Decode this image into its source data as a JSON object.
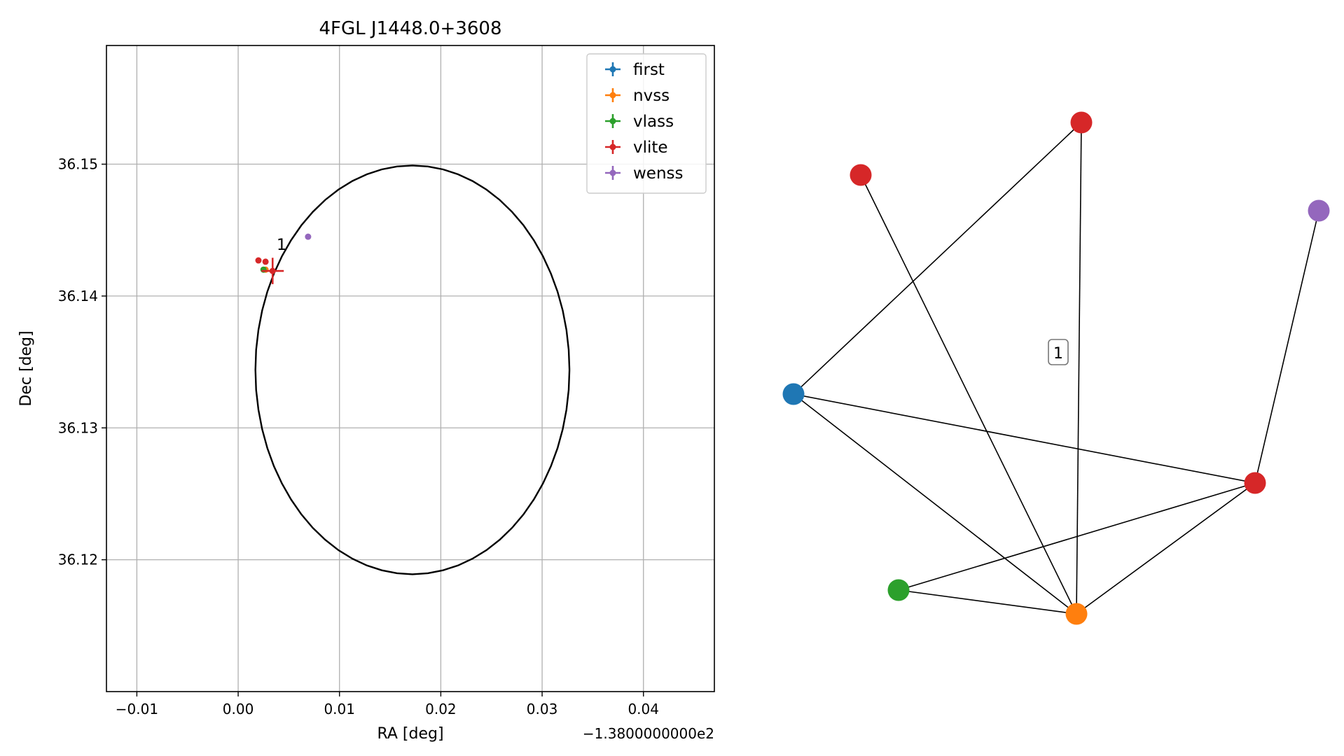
{
  "chart_data": [
    {
      "type": "scatter",
      "title": "4FGL J1448.0+3608",
      "xlabel": "RA [deg]",
      "ylabel": "Dec [deg]",
      "x_offset_text": "−1.3800000000e2",
      "xlim": [
        -0.013,
        0.047
      ],
      "ylim": [
        36.11,
        36.159
      ],
      "xticks": [
        -0.01,
        0.0,
        0.01,
        0.02,
        0.03,
        0.04
      ],
      "xtick_labels": [
        "−0.01",
        "0.00",
        "0.01",
        "0.02",
        "0.03",
        "0.04"
      ],
      "yticks": [
        36.12,
        36.13,
        36.14,
        36.15
      ],
      "ytick_labels": [
        "36.12",
        "36.13",
        "36.14",
        "36.15"
      ],
      "grid": true,
      "legend_position": "upper-right",
      "circle": {
        "center_x": 0.0172,
        "center_y": 36.1344,
        "radius_deg": 0.0155,
        "color": "#000000"
      },
      "annotations": [
        {
          "text": "1",
          "x": 0.0038,
          "y": 36.1435
        }
      ],
      "series": [
        {
          "name": "first",
          "color": "#1f77b4",
          "points": []
        },
        {
          "name": "nvss",
          "color": "#ff7f0e",
          "points": [
            {
              "x": 0.0027,
              "y": 36.142,
              "xerr": 0.0,
              "yerr": 0.0
            }
          ]
        },
        {
          "name": "vlass",
          "color": "#2ca02c",
          "points": [
            {
              "x": 0.0025,
              "y": 36.142,
              "xerr": 0.0,
              "yerr": 0.0
            }
          ]
        },
        {
          "name": "vlite",
          "color": "#d62728",
          "points": [
            {
              "x": 0.002,
              "y": 36.1427,
              "xerr": 0.0,
              "yerr": 0.0
            },
            {
              "x": 0.0027,
              "y": 36.1426,
              "xerr": 0.0,
              "yerr": 0.0
            },
            {
              "x": 0.0034,
              "y": 36.1419,
              "xerr": 0.0011,
              "yerr": 0.001
            }
          ]
        },
        {
          "name": "wenss",
          "color": "#9467bd",
          "points": [
            {
              "x": 0.0069,
              "y": 36.1445,
              "xerr": 0.0,
              "yerr": 0.0
            }
          ]
        }
      ]
    },
    {
      "type": "network",
      "cluster_label": "1",
      "nodes": [
        {
          "id": "first",
          "color": "#1f77b4"
        },
        {
          "id": "nvss",
          "color": "#ff7f0e"
        },
        {
          "id": "vlass",
          "color": "#2ca02c"
        },
        {
          "id": "vlite_a",
          "color": "#d62728"
        },
        {
          "id": "vlite_b",
          "color": "#d62728"
        },
        {
          "id": "vlite_c",
          "color": "#d62728"
        },
        {
          "id": "wenss",
          "color": "#9467bd"
        }
      ],
      "edges": [
        [
          "first",
          "vlite_b"
        ],
        [
          "first",
          "vlite_c"
        ],
        [
          "first",
          "nvss"
        ],
        [
          "vlite_a",
          "nvss"
        ],
        [
          "vlite_b",
          "nvss"
        ],
        [
          "vlite_c",
          "nvss"
        ],
        [
          "vlite_c",
          "vlass"
        ],
        [
          "vlite_c",
          "wenss"
        ],
        [
          "vlass",
          "nvss"
        ]
      ]
    }
  ]
}
